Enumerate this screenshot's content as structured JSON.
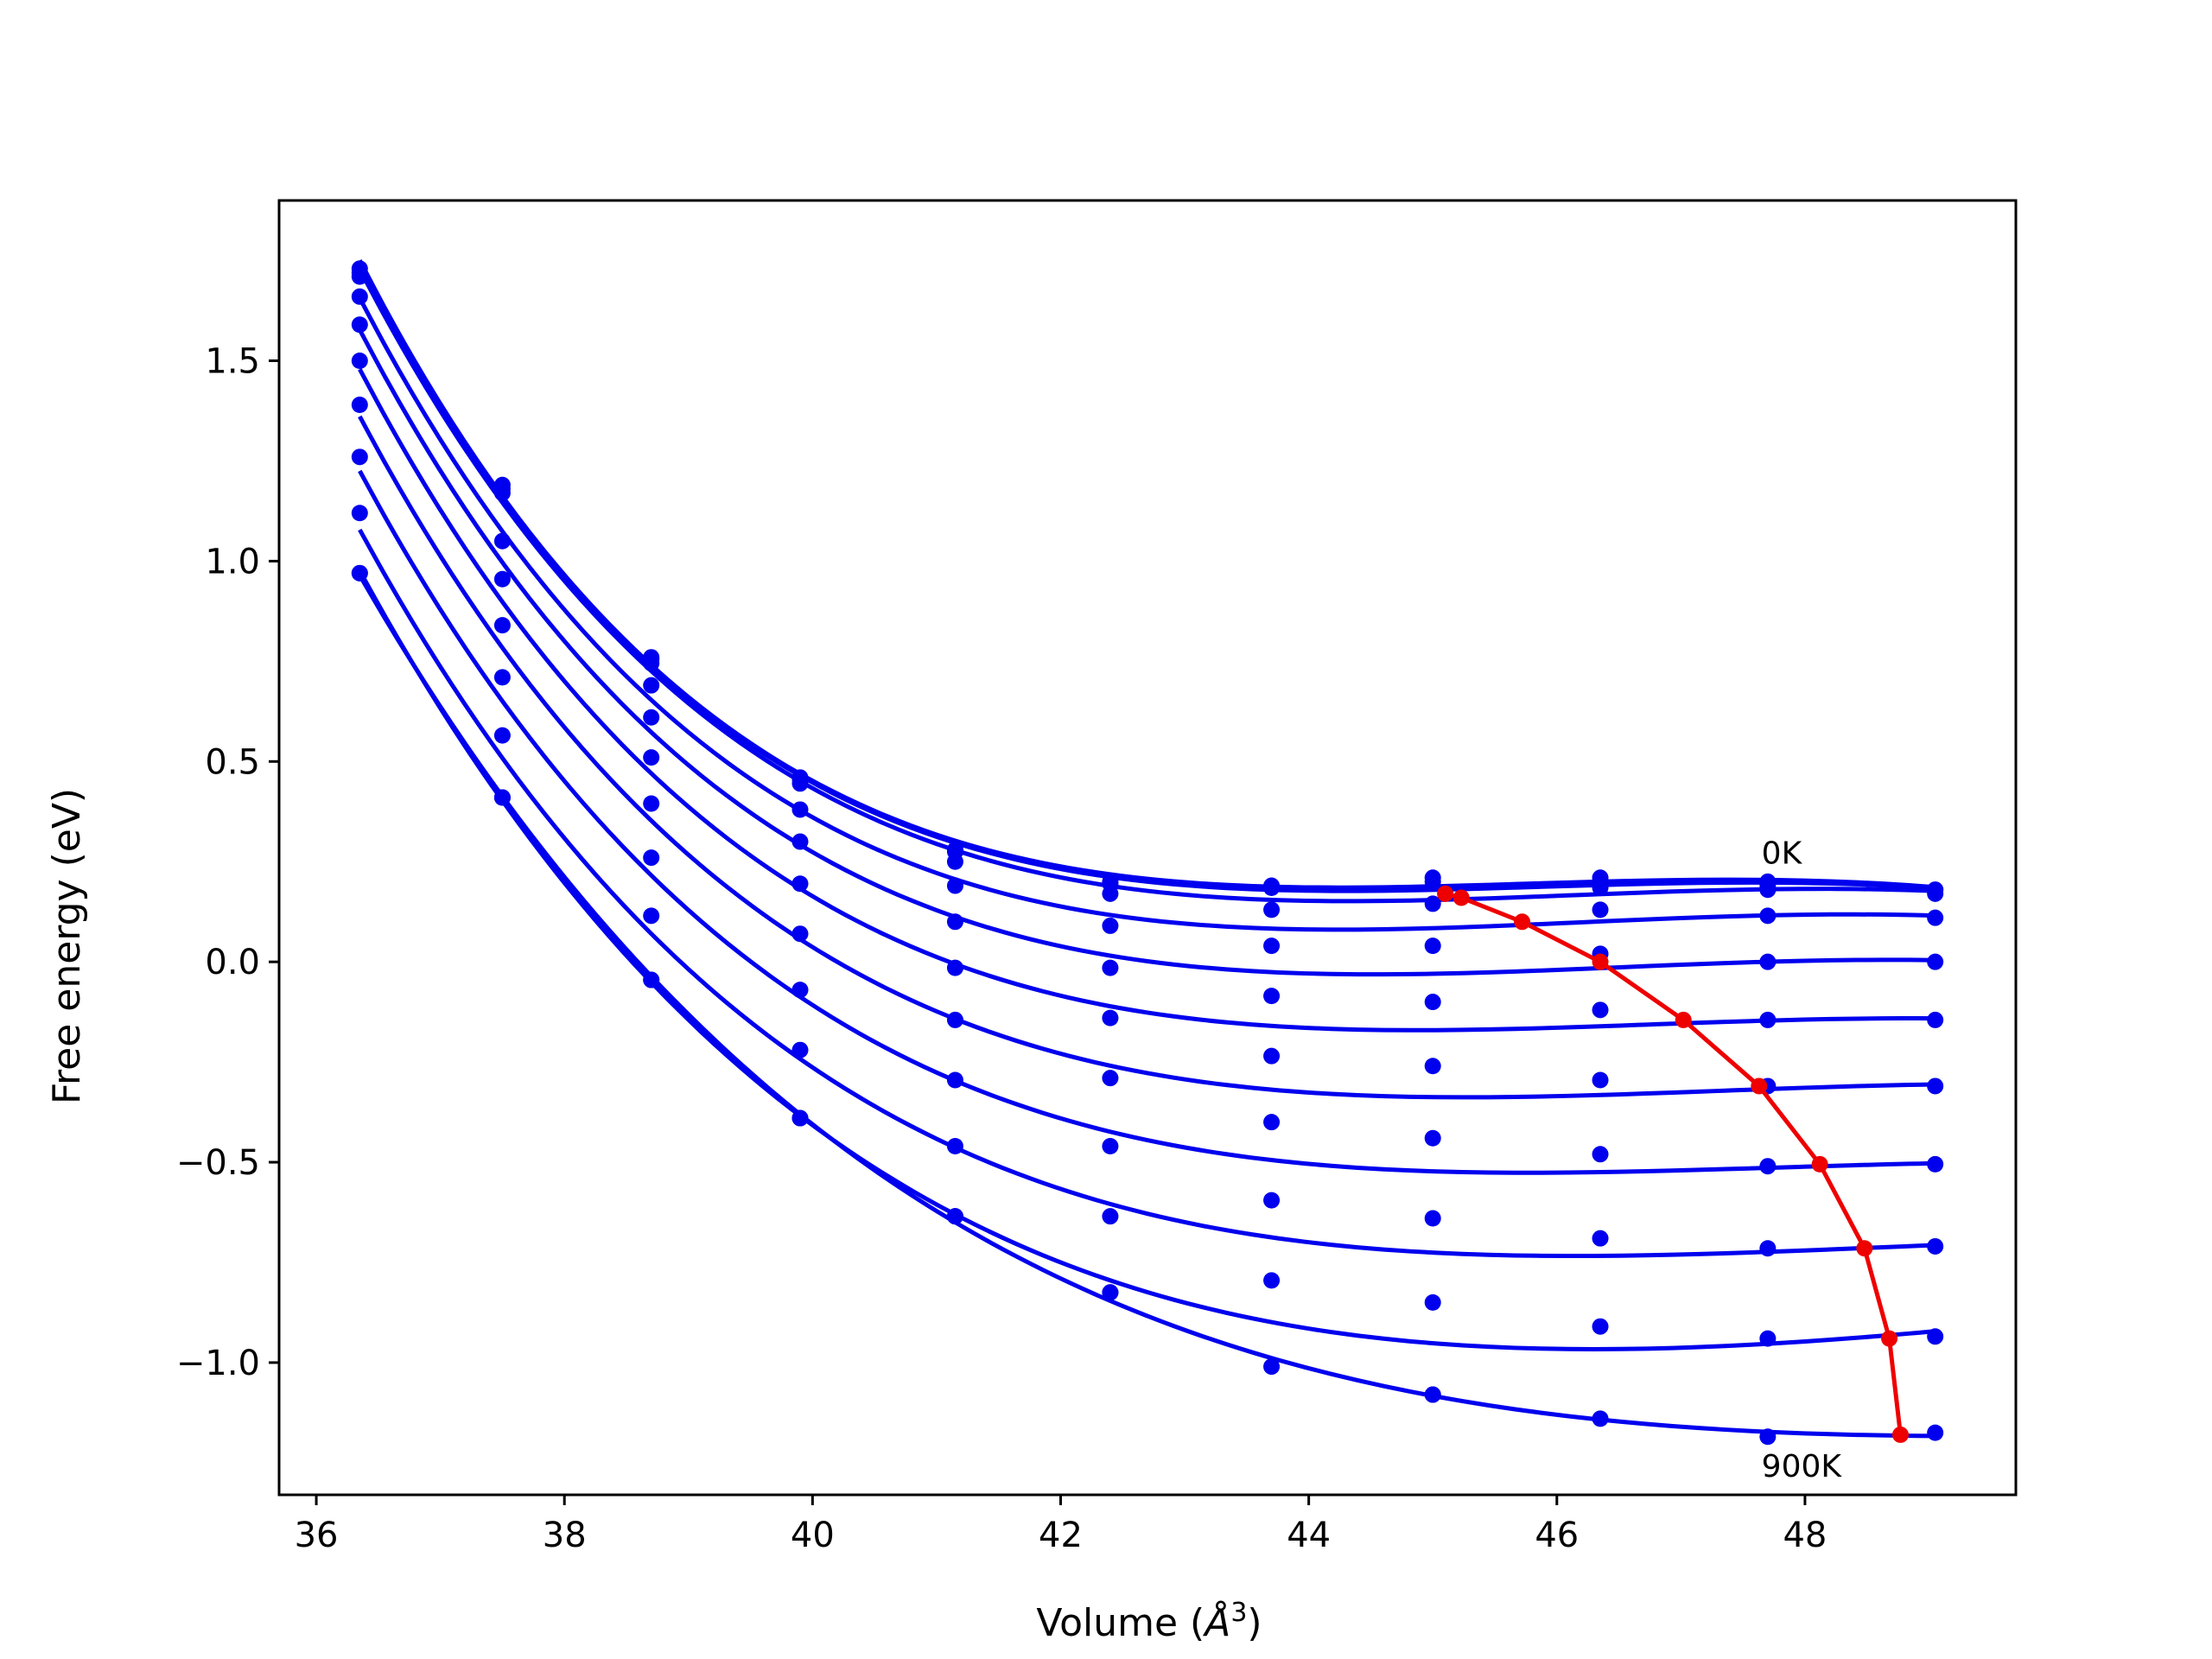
{
  "chart_data": {
    "type": "line",
    "xlabel": "Volume (",
    "xlabel_unit": "Å",
    "xlabel_exp": "3",
    "xlabel_close": ")",
    "ylabel": "Free energy (eV)",
    "xlim": [
      35.7,
      49.7
    ],
    "ylim": [
      -1.33,
      1.9
    ],
    "xticks": [
      36,
      38,
      40,
      42,
      44,
      46,
      48
    ],
    "yticks": [
      -1.0,
      -0.5,
      0.0,
      0.5,
      1.0,
      1.5
    ],
    "grid": false,
    "colors": {
      "isotherm": "#0000ee",
      "minimum_path": "#ee0000"
    },
    "x": [
      36.35,
      37.5,
      38.7,
      39.9,
      41.15,
      42.4,
      43.7,
      45.0,
      46.35,
      47.7,
      49.05
    ],
    "series": [
      {
        "role": "isotherm",
        "points": [
          1.73,
          1.19,
          0.76,
          0.46,
          0.28,
          0.2,
          0.19,
          0.21,
          0.21,
          0.2,
          0.18
        ]
      },
      {
        "role": "isotherm",
        "points": [
          1.72,
          1.18,
          0.755,
          0.455,
          0.275,
          0.195,
          0.185,
          0.2,
          0.2,
          0.19,
          0.18
        ]
      },
      {
        "role": "isotherm",
        "points": [
          1.71,
          1.17,
          0.745,
          0.445,
          0.25,
          0.17,
          0.185,
          0.145,
          0.185,
          0.18,
          0.17
        ]
      },
      {
        "role": "isotherm",
        "points": [
          1.66,
          1.05,
          0.69,
          0.38,
          0.19,
          0.09,
          0.13,
          0.04,
          0.13,
          0.115,
          0.11
        ]
      },
      {
        "role": "isotherm",
        "points": [
          1.59,
          0.955,
          0.61,
          0.3,
          0.1,
          -0.015,
          0.04,
          -0.1,
          0.02,
          0.0,
          0.0
        ]
      },
      {
        "role": "isotherm",
        "points": [
          1.5,
          0.84,
          0.51,
          0.195,
          -0.015,
          -0.14,
          -0.085,
          -0.26,
          -0.12,
          -0.145,
          -0.145
        ]
      },
      {
        "role": "isotherm",
        "points": [
          1.39,
          0.71,
          0.395,
          0.07,
          -0.145,
          -0.29,
          -0.235,
          -0.44,
          -0.295,
          -0.31,
          -0.31
        ]
      },
      {
        "role": "isotherm",
        "points": [
          1.26,
          0.565,
          0.26,
          -0.07,
          -0.295,
          -0.46,
          -0.4,
          -0.64,
          -0.48,
          -0.51,
          -0.505
        ]
      },
      {
        "role": "isotherm",
        "points": [
          1.12,
          0.41,
          0.115,
          -0.22,
          -0.46,
          -0.635,
          -0.595,
          -0.85,
          -0.69,
          -0.715,
          -0.71
        ]
      },
      {
        "role": "isotherm",
        "points": [
          0.97,
          0.41,
          -0.045,
          -0.39,
          -0.635,
          -0.825,
          -0.795,
          -1.08,
          -0.91,
          -0.94,
          -0.935
        ]
      },
      {
        "role": "isotherm",
        "points": [
          0.97,
          0.41,
          -0.045,
          -0.39,
          -0.635,
          -0.825,
          -1.01,
          -1.08,
          -1.14,
          -1.185,
          -1.175
        ]
      }
    ],
    "minimum_path": {
      "x": [
        45.1,
        45.23,
        45.72,
        46.35,
        47.02,
        47.63,
        48.12,
        48.48,
        48.68,
        48.77
      ],
      "y": [
        0.17,
        0.16,
        0.1,
        0.0,
        -0.145,
        -0.31,
        -0.505,
        -0.715,
        -0.94,
        -1.18
      ]
    },
    "annotations": [
      {
        "text": "0K",
        "x": 47.65,
        "y": 0.245
      },
      {
        "text": "900K",
        "x": 47.65,
        "y": -1.285
      }
    ]
  }
}
